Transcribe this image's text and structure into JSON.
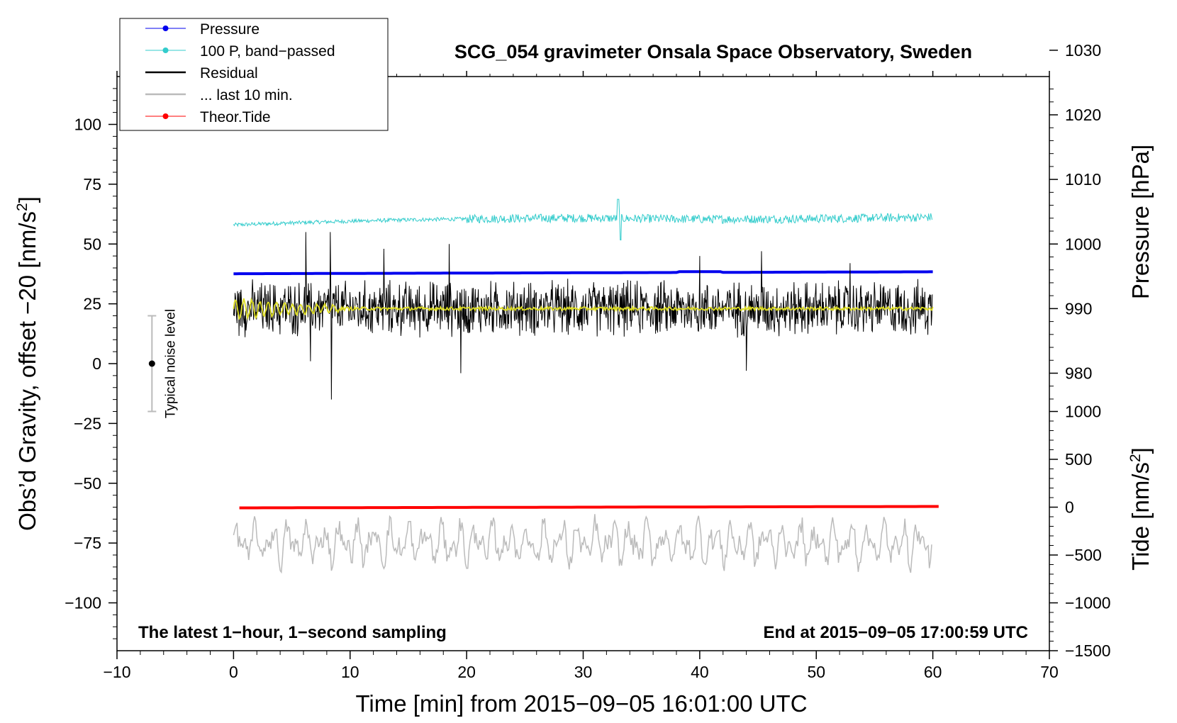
{
  "chart_data": {
    "type": "line",
    "title": "SCG_054 gravimeter Onsala Space Observatory, Sweden",
    "xlabel": "Time [min] from 2015−09−05 16:01:00 UTC",
    "ylabel": "Obs’d Gravity, offset −20 [nm/s²]",
    "ylabel_parts": {
      "main": "Obs’d Gravity, offset −20 [nm/s",
      "sup": "2",
      "end": "]"
    },
    "xlim": [
      -10,
      70
    ],
    "ylim": [
      -120,
      120
    ],
    "x_ticks": [
      -10,
      0,
      10,
      20,
      30,
      40,
      50,
      60,
      70
    ],
    "x_tick_labels": [
      "−10",
      "0",
      "10",
      "20",
      "30",
      "40",
      "50",
      "60",
      "70"
    ],
    "y_ticks": [
      -100,
      -75,
      -50,
      -25,
      0,
      25,
      50,
      75,
      100
    ],
    "y_tick_labels": [
      "−100",
      "−75",
      "−50",
      "−25",
      "0",
      "25",
      "50",
      "75",
      "100"
    ],
    "pressure_axis": {
      "label": "Pressure [hPa]",
      "ticks": [
        980,
        990,
        1000,
        1010,
        1020,
        1030
      ],
      "tick_labels": [
        "980",
        "990",
        "1000",
        "1010",
        "1020",
        "1030"
      ],
      "mapping": {
        "p_at_y50": 1000,
        "gravity_per_hpa": 2.7
      }
    },
    "tide_axis": {
      "label": "Tide [nm/s²]",
      "label_parts": {
        "main": "Tide [nm/s",
        "sup": "2",
        "end": "]"
      },
      "ticks": [
        -1500,
        -1000,
        -500,
        0,
        500,
        1000
      ],
      "tick_labels": [
        "−1500",
        "−1000",
        "−500",
        "0",
        "500",
        "1000"
      ],
      "mapping": {
        "tide_at_y_minus60": 0,
        "gravity_per_unit": 0.04
      }
    },
    "series": [
      {
        "name": "Pressure",
        "color": "#0000ee",
        "style": "line-marker",
        "x_range": [
          0,
          60
        ],
        "pressure_start": 995.4,
        "pressure_end": 995.7
      },
      {
        "name": "100 P, band−passed",
        "color": "#33cccc",
        "style": "line-marker",
        "x_range": [
          0,
          60
        ],
        "y_start": 58,
        "y_end": 61,
        "bumps": [
          [
            33,
            8
          ],
          [
            33.2,
            -9
          ]
        ]
      },
      {
        "name": "Residual",
        "color": "#000000",
        "style": "line",
        "x_range": [
          0,
          60
        ],
        "y_center": 23,
        "amplitude": 9,
        "spikes": [
          [
            6.2,
            55
          ],
          [
            6.6,
            1
          ],
          [
            8.3,
            55
          ],
          [
            8.4,
            -15
          ],
          [
            12.9,
            48
          ],
          [
            18.5,
            50
          ],
          [
            19.5,
            -4
          ],
          [
            40,
            45
          ],
          [
            44,
            -3
          ],
          [
            45.3,
            47
          ],
          [
            52.9,
            42
          ]
        ]
      },
      {
        "name": "... last 10 min.",
        "color": "#bbbbbb",
        "style": "line",
        "x_range": [
          0,
          60
        ],
        "y_center": -75,
        "amplitude": 9
      },
      {
        "name": "Theor.Tide",
        "color": "#ff0000",
        "style": "line-marker",
        "x_range": [
          0.5,
          60.5
        ],
        "y_start": -60.3,
        "y_end": -59.7
      }
    ],
    "smoothed_residual": {
      "color": "#dddd22",
      "y_center": 23
    },
    "noise_bar": {
      "label": "Typical noise level",
      "x": -7,
      "center": 0,
      "half_width": 20
    },
    "annotations": {
      "left_note": "The latest 1−hour, 1−second sampling",
      "right_note": "End at 2015−09−05 17:00:59 UTC"
    },
    "legend_position": "top-left"
  }
}
